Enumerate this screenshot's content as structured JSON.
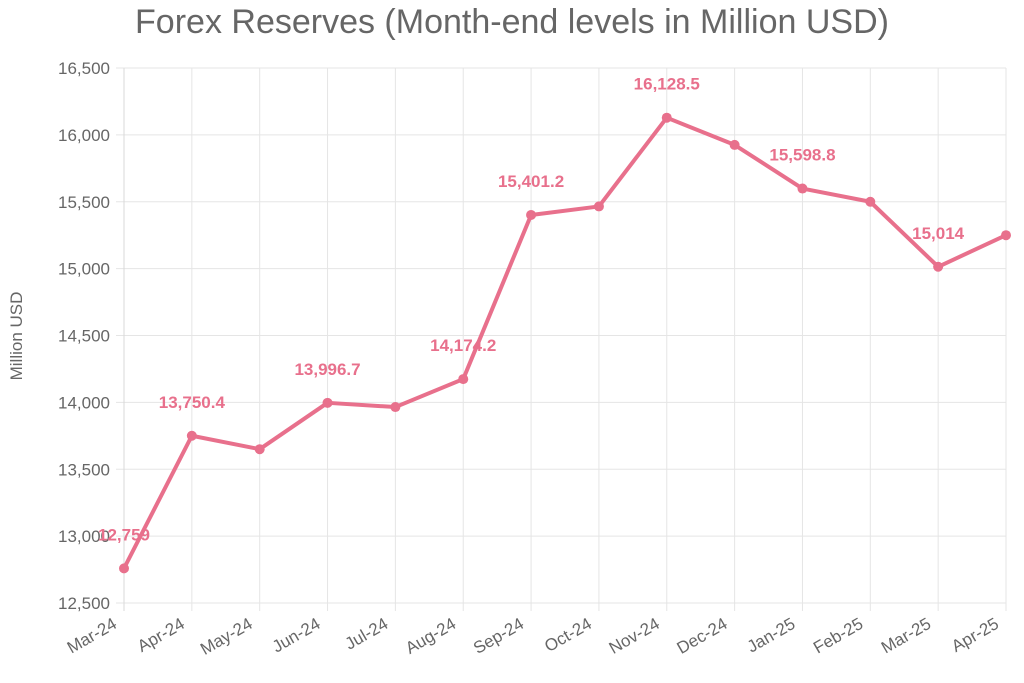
{
  "chart_data": {
    "type": "line",
    "title": "Forex Reserves (Month-end levels in Million USD)",
    "xlabel": "",
    "ylabel": "Million USD",
    "categories": [
      "Mar-24",
      "Apr-24",
      "May-24",
      "Jun-24",
      "Jul-24",
      "Aug-24",
      "Sep-24",
      "Oct-24",
      "Nov-24",
      "Dec-24",
      "Jan-25",
      "Feb-25",
      "Mar-25",
      "Apr-25"
    ],
    "series": [
      {
        "values": [
          12759,
          13750.4,
          13650,
          13996.7,
          13965,
          14174.2,
          15401.2,
          15465,
          16128.5,
          15925,
          15598.8,
          15500,
          15014,
          15250
        ]
      }
    ],
    "data_labels": [
      {
        "index": 0,
        "text": "12,759"
      },
      {
        "index": 1,
        "text": "13,750.4"
      },
      {
        "index": 3,
        "text": "13,996.7"
      },
      {
        "index": 5,
        "text": "14,174.2"
      },
      {
        "index": 6,
        "text": "15,401.2"
      },
      {
        "index": 8,
        "text": "16,128.5"
      },
      {
        "index": 10,
        "text": "15,598.8"
      },
      {
        "index": 12,
        "text": "15,014"
      }
    ],
    "ylim": [
      12500,
      16500
    ],
    "yticks": [
      12500,
      13000,
      13500,
      14000,
      14500,
      15000,
      15500,
      16000,
      16500
    ],
    "ytick_labels": [
      "12,500",
      "13,000",
      "13,500",
      "14,000",
      "14,500",
      "15,000",
      "15,500",
      "16,000",
      "16,500"
    ],
    "grid": true,
    "legend": "none",
    "colors": {
      "line": "#e8708c",
      "label": "#e8708c",
      "text": "#666666",
      "grid": "#e5e5e5"
    }
  }
}
